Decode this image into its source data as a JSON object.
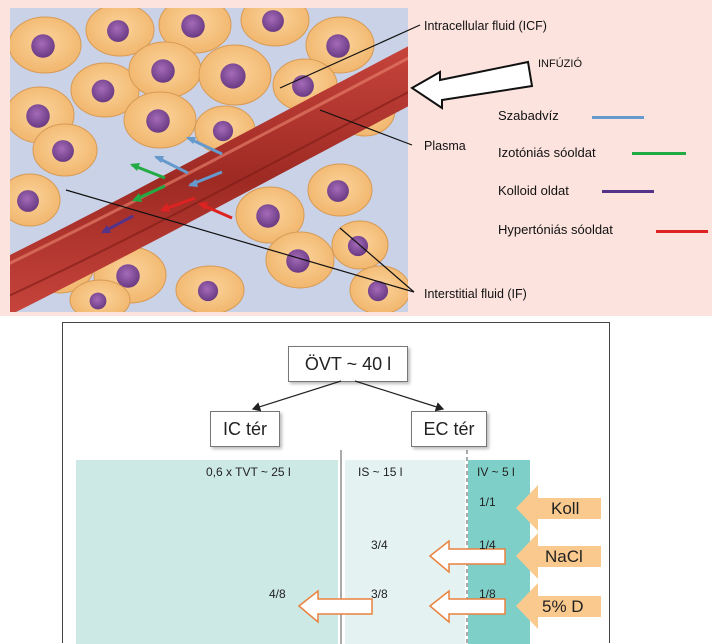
{
  "top_figure": {
    "labels": {
      "icf": "Intracellular fluid (ICF)",
      "infuzio": "INFÚZIÓ",
      "plasma": "Plasma",
      "if": "Interstitial fluid (IF)"
    },
    "legend": [
      {
        "label": "Szabadvíz",
        "color": "#6699cc"
      },
      {
        "label": "Izotóniás sóoldat",
        "color": "#22aa44"
      },
      {
        "label": "Kolloid oldat",
        "color": "#553388"
      },
      {
        "label": "Hypertóniás sóoldat",
        "color": "#dd2222"
      }
    ]
  },
  "bottom_figure": {
    "ovt": "ÖVT ~ 40 l",
    "ic": "IC tér",
    "ec": "EC tér",
    "ic_volume": "0,6 x TVT ~ 25 l",
    "is_volume": "IS ~ 15 l",
    "iv_volume": "IV ~ 5 l",
    "rows": [
      {
        "solution": "Koll",
        "iv": "1/1",
        "is": "",
        "ic": ""
      },
      {
        "solution": "NaCl",
        "iv": "1/4",
        "is": "3/4",
        "ic": ""
      },
      {
        "solution": "5% D",
        "iv": "1/8",
        "is": "3/8",
        "ic": "4/8"
      }
    ],
    "colors": {
      "ic_bg": "#cde9e5",
      "is_bg": "#e4f3f1",
      "iv_bg": "#7fcfc9",
      "arrow_fill": "#f9c98e",
      "arrow_outline": "#e8823f"
    }
  }
}
